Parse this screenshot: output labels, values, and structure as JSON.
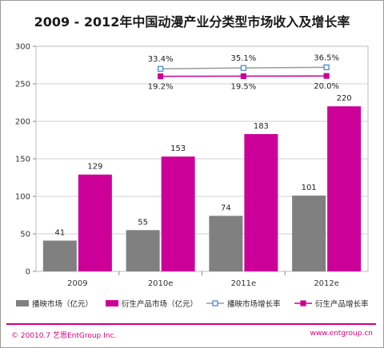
{
  "title": "2009 - 2012年中国动漫产业分类型市场收入及增长率",
  "footer": {
    "left": "© 20010.7 艺恩EntGroup Inc.",
    "right": "www.entgroup.cn"
  },
  "chart_data": {
    "type": "bar",
    "categories": [
      "2009",
      "2010e",
      "2011e",
      "2012e"
    ],
    "ylim": [
      0,
      300
    ],
    "yticks": [
      0,
      50,
      100,
      150,
      200,
      250,
      300
    ],
    "bar_series": [
      {
        "name": "播映市场（亿元）",
        "color": "#808080",
        "values": [
          41,
          55,
          74,
          101
        ],
        "labels": [
          "41",
          "55",
          "74",
          "101"
        ]
      },
      {
        "name": "衍生产品市场（亿元）",
        "color": "#cc0099",
        "values": [
          129,
          153,
          183,
          220
        ],
        "labels": [
          "129",
          "153",
          "183",
          "220"
        ]
      }
    ],
    "line_series": [
      {
        "name": "播映市场增长率",
        "color": "#3b7fd6",
        "line_color": "#9a9a9a",
        "categories": [
          "2010e",
          "2011e",
          "2012e"
        ],
        "values": [
          33.4,
          35.1,
          36.5
        ],
        "labels": [
          "33.4%",
          "35.1%",
          "36.5%"
        ]
      },
      {
        "name": "衍生产品增长率",
        "color": "#cc0099",
        "line_color": "#cc0099",
        "categories": [
          "2010e",
          "2011e",
          "2012e"
        ],
        "values": [
          19.2,
          19.5,
          20.0
        ],
        "labels": [
          "19.2%",
          "19.5%",
          "20.0%"
        ]
      }
    ],
    "grid": true,
    "legend": "bottom"
  }
}
